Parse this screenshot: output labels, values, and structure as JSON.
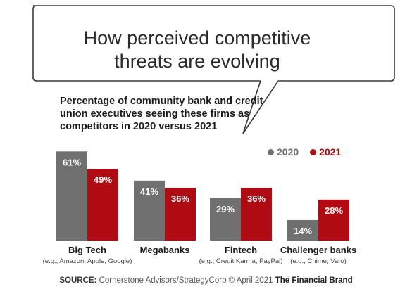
{
  "headline": "How perceived competitive threats are evolving",
  "headline_lines": [
    "How perceived competitive",
    "threats are evolving"
  ],
  "colors": {
    "2020": "#707070",
    "2021": "#b00b12"
  },
  "chart_data": {
    "type": "bar",
    "title": "Percentage of community bank and credit union executives seeing these firms as competitors in 2020 versus 2021",
    "title_lines": [
      "Percentage of community bank and credit",
      "union executives seeing these firms as",
      "competitors in 2020 versus 2021"
    ],
    "categories": [
      "Big Tech",
      "Megabanks",
      "Fintech",
      "Challenger banks"
    ],
    "category_notes": [
      "(e.g., Amazon, Apple, Google)",
      "",
      "(e.g., Credit Karma, PayPal)",
      "(e.g., Chime, Varo)"
    ],
    "series": [
      {
        "name": "2020",
        "values": [
          61,
          41,
          29,
          14
        ]
      },
      {
        "name": "2021",
        "values": [
          49,
          36,
          36,
          28
        ]
      }
    ],
    "value_suffix": "%",
    "ylim": [
      0,
      65
    ],
    "legend": "top-right",
    "grid": false
  },
  "source": {
    "label": "SOURCE:",
    "text": "Cornerstone Advisors/StrategyCorp © April 2021",
    "brand": "The Financial Brand"
  }
}
